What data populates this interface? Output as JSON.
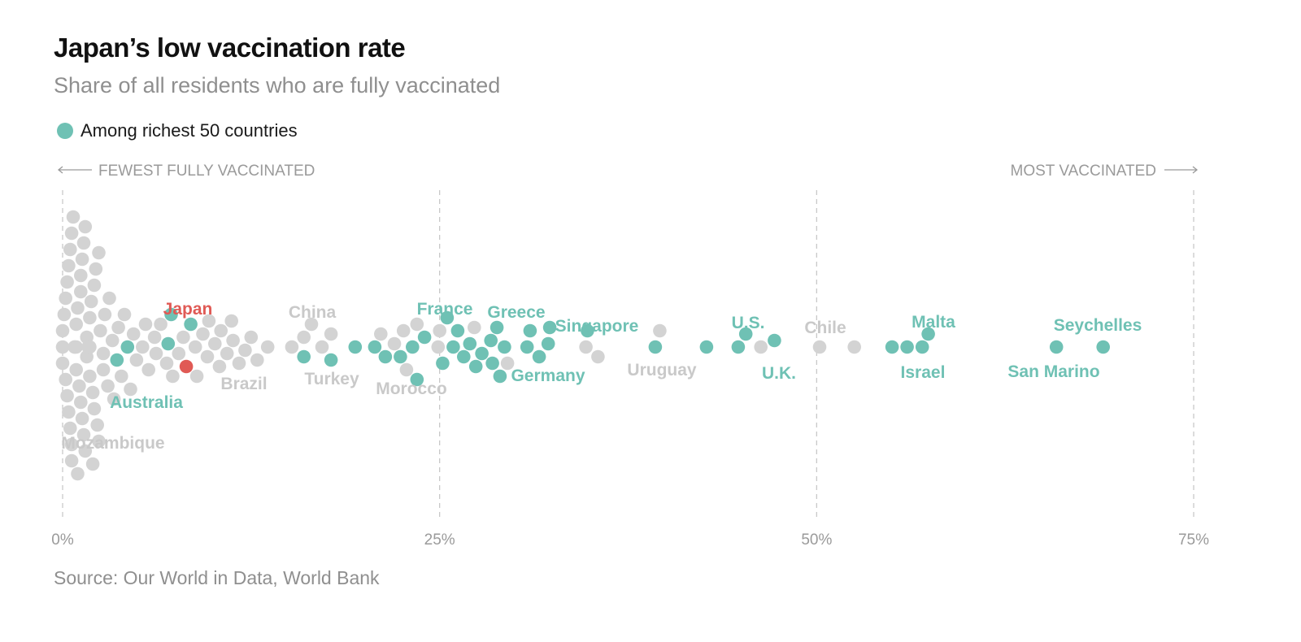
{
  "header": {
    "title": "Japan’s low vaccination rate",
    "subtitle": "Share of all residents who are fully vaccinated"
  },
  "legend": {
    "label": "Among richest 50 countries",
    "color": "#6fc1b4"
  },
  "colors": {
    "rich": "#6fc1b4",
    "other": "#d3d3d3",
    "highlight": "#e05a55",
    "other_label": "#c9c9c9"
  },
  "axis": {
    "left_direction": "FEWEST FULLY VACCINATED",
    "right_direction": "MOST VACCINATED",
    "ticks": [
      {
        "value": 0,
        "label": "0%"
      },
      {
        "value": 25,
        "label": "25%"
      },
      {
        "value": 50,
        "label": "50%"
      },
      {
        "value": 75,
        "label": "75%"
      }
    ]
  },
  "source": "Source: Our World in Data, World Bank",
  "chart_data": {
    "type": "scatter",
    "title": "Japan’s low vaccination rate",
    "subtitle": "Share of all residents who are fully vaccinated",
    "xlabel": "",
    "ylabel": "",
    "xlim": [
      0,
      75
    ],
    "grid": true,
    "legend_position": "top-left",
    "labels": [
      {
        "text": "Japan",
        "group": "highlight"
      },
      {
        "text": "Australia",
        "group": "rich"
      },
      {
        "text": "Mozambique",
        "group": "other"
      },
      {
        "text": "Brazil",
        "group": "other"
      },
      {
        "text": "China",
        "group": "other"
      },
      {
        "text": "Turkey",
        "group": "other"
      },
      {
        "text": "Morocco",
        "group": "other"
      },
      {
        "text": "France",
        "group": "rich"
      },
      {
        "text": "Greece",
        "group": "rich"
      },
      {
        "text": "Germany",
        "group": "rich"
      },
      {
        "text": "Singapore",
        "group": "rich"
      },
      {
        "text": "Uruguay",
        "group": "other"
      },
      {
        "text": "U.S.",
        "group": "rich"
      },
      {
        "text": "U.K.",
        "group": "rich"
      },
      {
        "text": "Chile",
        "group": "other"
      },
      {
        "text": "Malta",
        "group": "rich"
      },
      {
        "text": "Israel",
        "group": "rich"
      },
      {
        "text": "Seychelles",
        "group": "rich"
      },
      {
        "text": "San Marino",
        "group": "rich"
      }
    ],
    "rich_values": [
      3.6,
      4.3,
      7.2,
      7.0,
      8.5,
      16.0,
      17.8,
      19.4,
      20.7,
      21.4,
      22.4,
      23.5,
      23.2,
      24.0,
      25.5,
      25.2,
      25.9,
      26.2,
      27.0,
      26.6,
      27.4,
      27.8,
      28.5,
      28.4,
      29.0,
      29.3,
      28.8,
      31.0,
      30.8,
      31.6,
      32.2,
      32.3,
      34.8,
      39.3,
      42.7,
      45.3,
      44.8,
      47.2,
      55.0,
      56.0,
      57.0,
      57.4,
      65.9,
      69.0
    ],
    "highlight_values": [
      8.2
    ],
    "other_values": [
      0.0,
      0.3,
      0.6,
      0.9,
      1.2,
      1.5,
      1.8,
      2.1,
      2.4,
      2.7,
      3.0,
      3.3,
      0.1,
      0.4,
      0.7,
      1.0,
      1.3,
      1.6,
      1.9,
      2.2,
      2.5,
      2.8,
      3.1,
      0.0,
      0.3,
      0.6,
      0.9,
      1.2,
      1.5,
      1.8,
      2.1,
      2.4,
      2.7,
      0.2,
      0.5,
      0.8,
      1.1,
      1.4,
      1.7,
      2.0,
      2.3,
      0.0,
      0.4,
      0.8,
      1.2,
      1.6,
      2.0,
      0.2,
      0.6,
      1.0,
      1.4,
      1.8,
      0.5,
      0.9,
      1.3,
      3.7,
      4.5,
      5.3,
      6.1,
      6.9,
      7.7,
      4.1,
      4.9,
      5.7,
      6.5,
      7.3,
      8.9,
      9.7,
      10.5,
      11.3,
      12.1,
      12.9,
      13.6,
      9.3,
      10.1,
      10.9,
      11.7,
      12.5,
      8.0,
      8.8,
      9.6,
      10.4,
      11.2,
      3.9,
      4.7,
      5.5,
      6.2,
      3.4,
      15.2,
      16.5,
      17.2,
      17.8,
      16.0,
      22.8,
      21.1,
      22.0,
      22.6,
      23.5,
      25.0,
      24.9,
      27.3,
      29.5,
      34.7,
      35.5,
      39.6,
      46.3,
      50.2,
      52.5
    ]
  }
}
